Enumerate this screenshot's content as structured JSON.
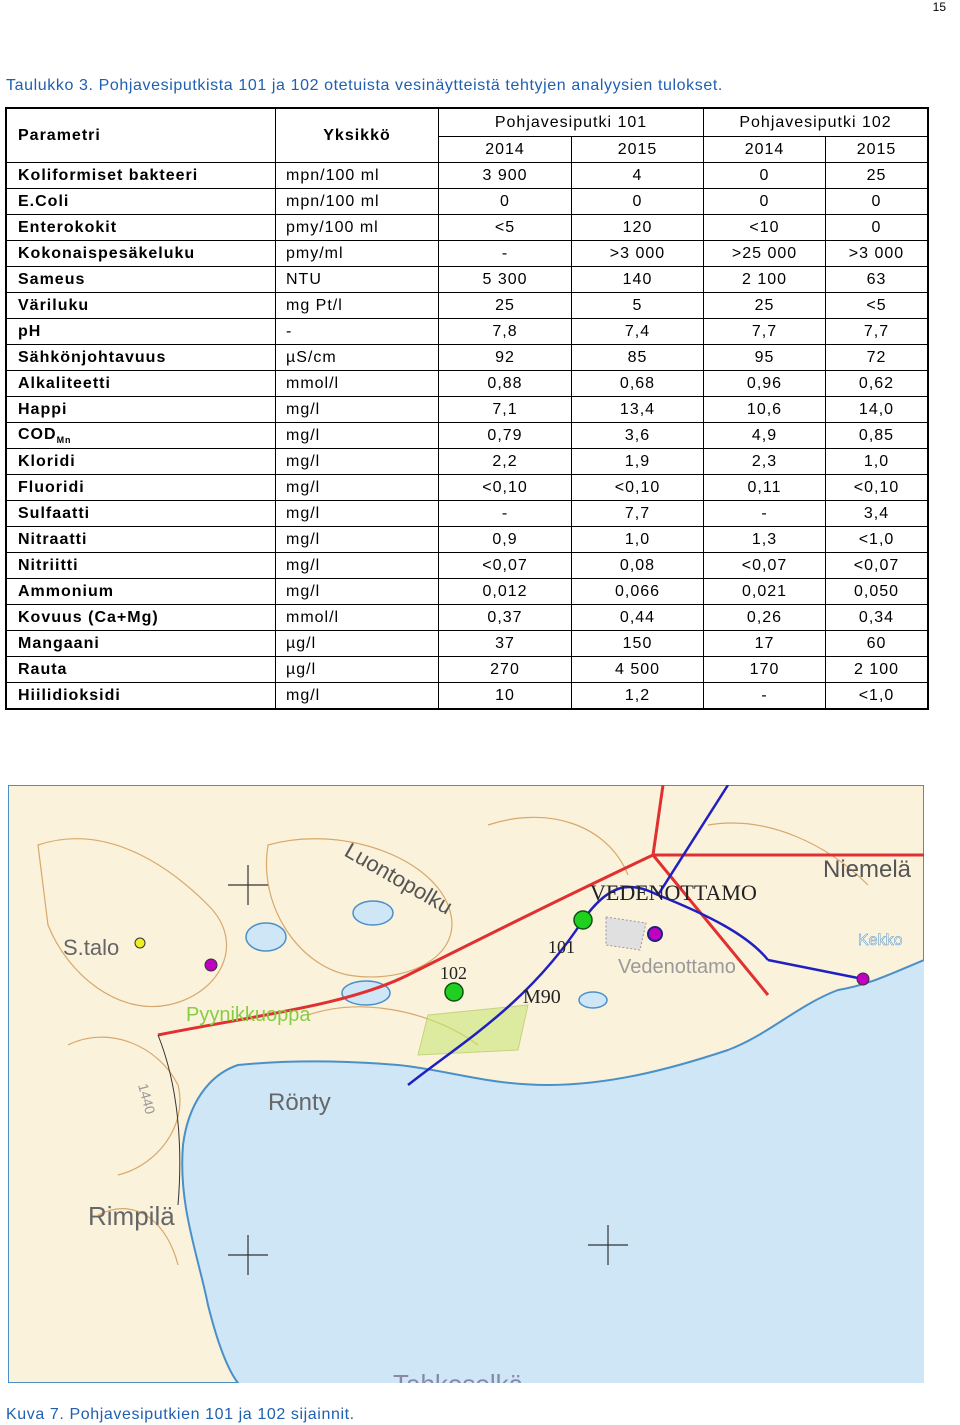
{
  "page_number": "15",
  "table_caption": "Taulukko 3. Pohjavesiputkista 101 ja 102 otetuista vesinäytteistä tehtyjen analyysien tulokset.",
  "header": {
    "parameter": "Parametri",
    "unit": "Yksikkö",
    "group_101": "Pohjavesiputki 101",
    "group_102": "Pohjavesiputki 102",
    "years": [
      "2014",
      "2015",
      "2014",
      "2015"
    ]
  },
  "rows": [
    {
      "param": "Koliformiset bakteeri",
      "unit": "mpn/100 ml",
      "values": [
        "3 900",
        "4",
        "0",
        "25"
      ]
    },
    {
      "param": "E.Coli",
      "unit": "mpn/100 ml",
      "values": [
        "0",
        "0",
        "0",
        "0"
      ]
    },
    {
      "param": "Enterokokit",
      "unit": "pmy/100 ml",
      "values": [
        "<5",
        "120",
        "<10",
        "0"
      ]
    },
    {
      "param": "Kokonaispesäkeluku",
      "unit": "pmy/ml",
      "values": [
        "-",
        ">3 000",
        ">25 000",
        ">3 000"
      ]
    },
    {
      "param": "Sameus",
      "unit": "NTU",
      "values": [
        "5 300",
        "140",
        "2 100",
        "63"
      ]
    },
    {
      "param": "Väriluku",
      "unit": "mg Pt/l",
      "values": [
        "25",
        "5",
        "25",
        "<5"
      ]
    },
    {
      "param": "pH",
      "unit": "-",
      "values": [
        "7,8",
        "7,4",
        "7,7",
        "7,7"
      ]
    },
    {
      "param": "Sähkönjohtavuus",
      "unit": "µS/cm",
      "values": [
        "92",
        "85",
        "95",
        "72"
      ]
    },
    {
      "param": "Alkaliteetti",
      "unit": "mmol/l",
      "values": [
        "0,88",
        "0,68",
        "0,96",
        "0,62"
      ]
    },
    {
      "param": "Happi",
      "unit": "mg/l",
      "values": [
        "7,1",
        "13,4",
        "10,6",
        "14,0"
      ]
    },
    {
      "param": "COD",
      "param_sub": "Mn",
      "unit": "mg/l",
      "values": [
        "0,79",
        "3,6",
        "4,9",
        "0,85"
      ]
    },
    {
      "param": "Kloridi",
      "unit": "mg/l",
      "values": [
        "2,2",
        "1,9",
        "2,3",
        "1,0"
      ]
    },
    {
      "param": "Fluoridi",
      "unit": "mg/l",
      "values": [
        "<0,10",
        "<0,10",
        "0,11",
        "<0,10"
      ]
    },
    {
      "param": "Sulfaatti",
      "unit": "mg/l",
      "values": [
        "-",
        "7,7",
        "-",
        "3,4"
      ]
    },
    {
      "param": "Nitraatti",
      "unit": "mg/l",
      "values": [
        "0,9",
        "1,0",
        "1,3",
        "<1,0"
      ]
    },
    {
      "param": "Nitriitti",
      "unit": "mg/l",
      "values": [
        "<0,07",
        "0,08",
        "<0,07",
        "<0,07"
      ]
    },
    {
      "param": "Ammonium",
      "unit": "mg/l",
      "values": [
        "0,012",
        "0,066",
        "0,021",
        "0,050"
      ]
    },
    {
      "param": "Kovuus (Ca+Mg)",
      "unit": "mmol/l",
      "values": [
        "0,37",
        "0,44",
        "0,26",
        "0,34"
      ]
    },
    {
      "param": "Mangaani",
      "unit": "µg/l",
      "values": [
        "37",
        "150",
        "17",
        "60"
      ]
    },
    {
      "param": "Rauta",
      "unit": "µg/l",
      "values": [
        "270",
        "4 500",
        "170",
        "2 100"
      ]
    },
    {
      "param": "Hiilidioksidi",
      "unit": "mg/l",
      "values": [
        "10",
        "1,2",
        "-",
        "<1,0"
      ]
    }
  ],
  "map": {
    "labels": {
      "luontopolku": "Luontopolku",
      "vedenottamo_caps": "VEDENOTTAMO",
      "niemela": "Niemelä",
      "s_talo": "S.talo",
      "kekko": "Kekko",
      "pipe_101": "101",
      "pipe_102": "102",
      "vedenottamo": "Vedenottamo",
      "m90": "M90",
      "pyynikkuoppa": "Pyynikkuoppa",
      "road_number": "1440",
      "ronty": "Rönty",
      "rimpila": "Rimpilä",
      "tahkoselka": "Tahkoselkä"
    },
    "colors": {
      "land": "#fbf2dc",
      "water": "#cfe6f7",
      "shore": "#4a90c8",
      "contour": "#d8a86a",
      "road": "#e03030",
      "pipeline": "#2020c0",
      "pipe_marker": "#20d020",
      "intake_marker": "#c000c0",
      "sand_area": "#c8e878"
    }
  },
  "figure_caption": "Kuva 7. Pohjavesiputkien 101 ja 102 sijainnit."
}
